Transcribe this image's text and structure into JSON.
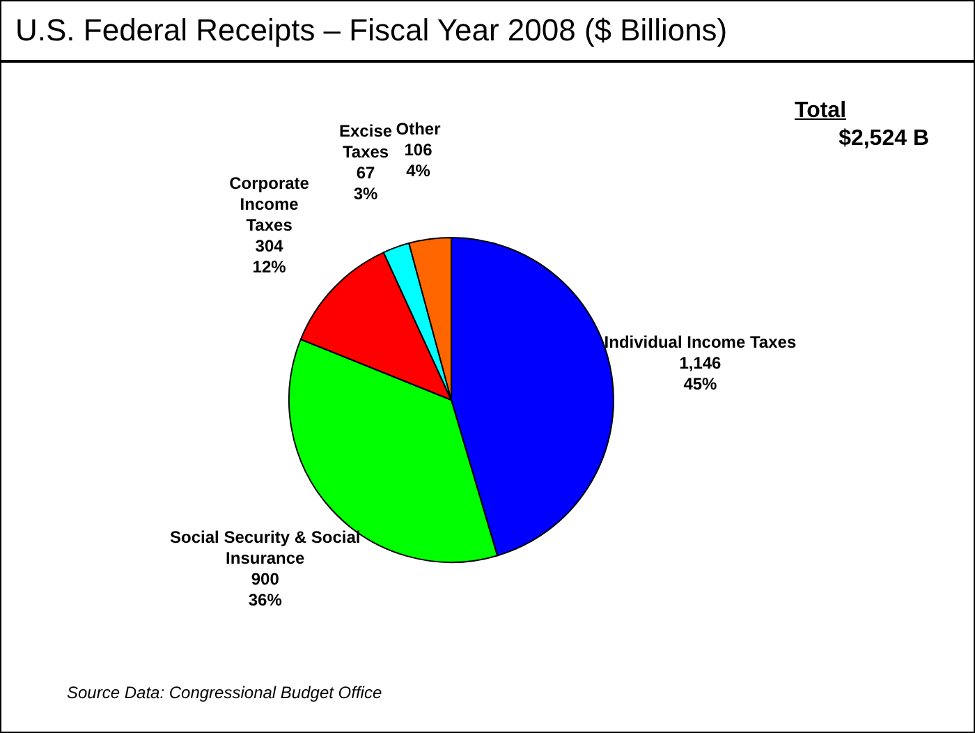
{
  "chart_data": {
    "type": "pie",
    "title": "U.S. Federal Receipts – Fiscal Year 2008 ($ Billions)",
    "categories": [
      "Individual Income Taxes",
      "Social Security & Social Insurance",
      "Corporate Income Taxes",
      "Excise Taxes",
      "Other"
    ],
    "values": [
      1146,
      900,
      304,
      67,
      106
    ],
    "colors": [
      "#0000ff",
      "#00ff00",
      "#ff0000",
      "#00ffff",
      "#ff6600"
    ],
    "value_labels": [
      "1,146\n45%",
      "900\n36%",
      "304\n12%",
      "67\n3%",
      "106\n4%"
    ],
    "annotations": [
      "Total",
      "$2,524 B",
      "Source Data: Congressional Budget Office"
    ],
    "legend": false
  }
}
